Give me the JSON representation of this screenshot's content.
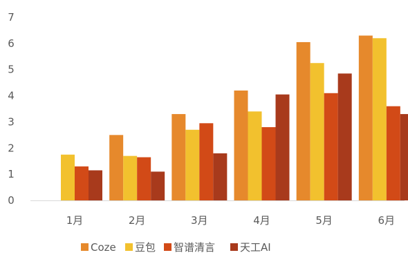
{
  "chart_data": {
    "type": "bar",
    "title": "",
    "xlabel": "",
    "ylabel": "",
    "categories": [
      "1月",
      "2月",
      "3月",
      "4月",
      "5月",
      "6月"
    ],
    "y_ticks": [
      "0",
      "1",
      "2",
      "3",
      "4",
      "5",
      "6",
      "7"
    ],
    "ylim": [
      0,
      7
    ],
    "grid": false,
    "legend_position": "bottom",
    "series": [
      {
        "name": "Coze",
        "color": "#E6892C",
        "values": [
          0,
          2.5,
          3.3,
          4.2,
          6.05,
          6.3
        ]
      },
      {
        "name": "豆包",
        "color": "#F2C12E",
        "values": [
          1.75,
          1.7,
          2.7,
          3.4,
          5.25,
          6.2
        ]
      },
      {
        "name": "智谱清言",
        "color": "#D24A17",
        "values": [
          1.3,
          1.65,
          2.95,
          2.8,
          4.1,
          3.6
        ]
      },
      {
        "name": "天工AI",
        "color": "#A83A1C",
        "values": [
          1.15,
          1.1,
          1.8,
          4.05,
          4.85,
          3.3
        ]
      }
    ]
  }
}
